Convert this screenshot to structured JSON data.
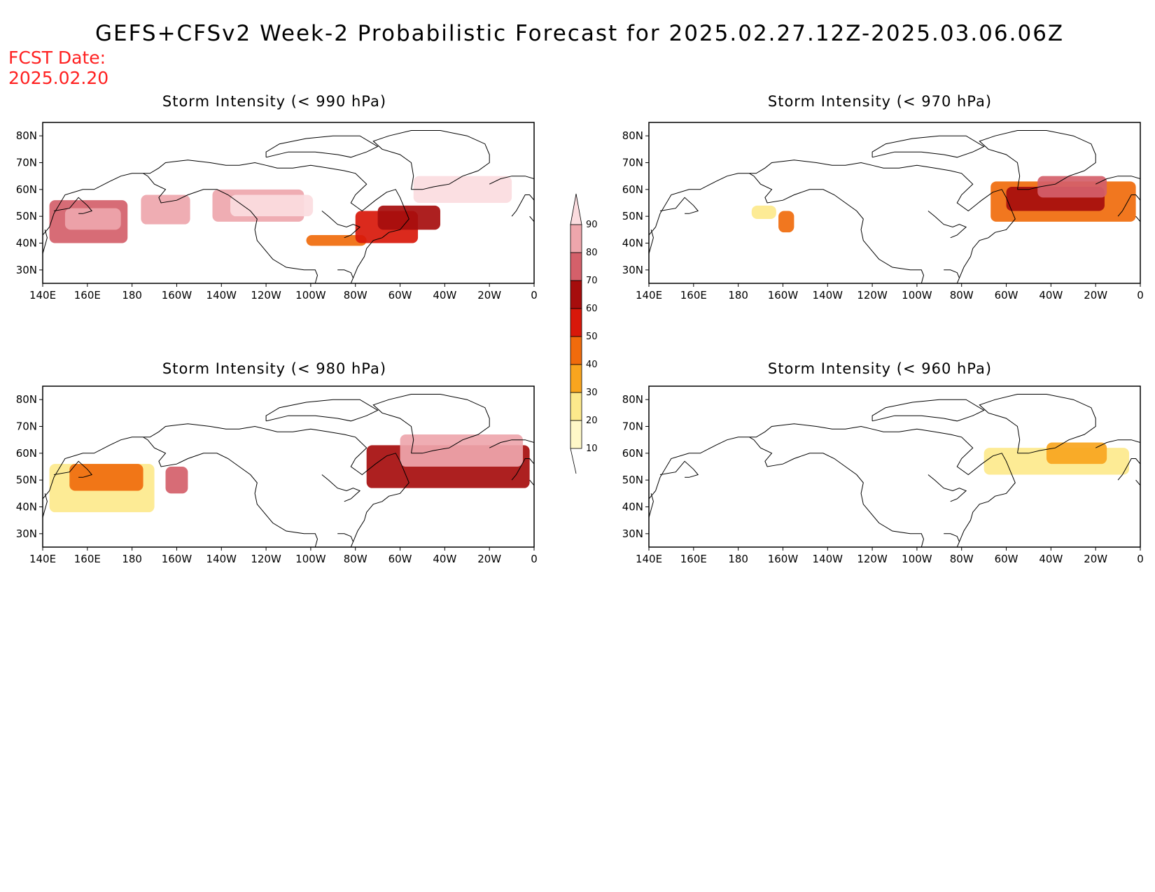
{
  "title": "GEFS+CFSv2 Week-2 Probabilistic Forecast for 2025.02.27.12Z-2025.03.06.06Z",
  "fcst_label": "FCST Date:",
  "fcst_date": "2025.02.20",
  "lat_labels": [
    "80N",
    "70N",
    "60N",
    "50N",
    "40N",
    "30N"
  ],
  "lon_labels": [
    "140E",
    "160E",
    "180",
    "160W",
    "140W",
    "120W",
    "100W",
    "80W",
    "60W",
    "40W",
    "20W",
    "0"
  ],
  "panels": [
    {
      "id": "p990",
      "title": "Storm Intensity (< 990 hPa)"
    },
    {
      "id": "p970",
      "title": "Storm Intensity (< 970 hPa)"
    },
    {
      "id": "p980",
      "title": "Storm Intensity (< 980 hPa)"
    },
    {
      "id": "p960",
      "title": "Storm Intensity (< 960 hPa)"
    }
  ],
  "colorbar": {
    "levels": [
      "10",
      "20",
      "30",
      "40",
      "50",
      "60",
      "70",
      "80",
      "90"
    ],
    "colors": [
      "#fff8c8",
      "#fde98c",
      "#f9a51e",
      "#f06b0c",
      "#d8180a",
      "#a60d0d",
      "#d4606a",
      "#eea6ac",
      "#fbdcdf"
    ]
  },
  "chart_data": {
    "type": "heatmap",
    "domain": {
      "lon": [
        "140E",
        "0"
      ],
      "lat": [
        "25N",
        "85N"
      ]
    },
    "probability_bins_pct": [
      10,
      20,
      30,
      40,
      50,
      60,
      70,
      80,
      90
    ],
    "regions": {
      "p990": [
        {
          "lon": [
            143,
            178
          ],
          "lat": [
            40,
            56
          ],
          "level": 6
        },
        {
          "lon": [
            150,
            175
          ],
          "lat": [
            45,
            53
          ],
          "level": 7
        },
        {
          "lon": [
            184,
            206
          ],
          "lat": [
            47,
            58
          ],
          "level": 7
        },
        {
          "lon": [
            216,
            257
          ],
          "lat": [
            48,
            60
          ],
          "level": 7
        },
        {
          "lon": [
            224,
            261
          ],
          "lat": [
            50,
            58
          ],
          "level": 8
        },
        {
          "lon": [
            258,
            285
          ],
          "lat": [
            39,
            43
          ],
          "level": 3
        },
        {
          "lon": [
            280,
            308
          ],
          "lat": [
            40,
            52
          ],
          "level": 4
        },
        {
          "lon": [
            290,
            318
          ],
          "lat": [
            45,
            54
          ],
          "level": 5
        },
        {
          "lon": [
            306,
            350
          ],
          "lat": [
            55,
            65
          ],
          "level": 8
        }
      ],
      "p970": [
        {
          "lon": [
            186,
            197
          ],
          "lat": [
            49,
            54
          ],
          "level": 1
        },
        {
          "lon": [
            198,
            205
          ],
          "lat": [
            44,
            52
          ],
          "level": 3
        },
        {
          "lon": [
            293,
            358
          ],
          "lat": [
            48,
            63
          ],
          "level": 3
        },
        {
          "lon": [
            300,
            344
          ],
          "lat": [
            52,
            61
          ],
          "level": 5
        },
        {
          "lon": [
            314,
            345
          ],
          "lat": [
            57,
            65
          ],
          "level": 6
        }
      ],
      "p980": [
        {
          "lon": [
            143,
            190
          ],
          "lat": [
            38,
            56
          ],
          "level": 1
        },
        {
          "lon": [
            152,
            185
          ],
          "lat": [
            46,
            56
          ],
          "level": 3
        },
        {
          "lon": [
            195,
            205
          ],
          "lat": [
            45,
            55
          ],
          "level": 6
        },
        {
          "lon": [
            285,
            358
          ],
          "lat": [
            47,
            63
          ],
          "level": 5
        },
        {
          "lon": [
            300,
            355
          ],
          "lat": [
            55,
            67
          ],
          "level": 7
        }
      ],
      "p960": [
        {
          "lon": [
            290,
            355
          ],
          "lat": [
            52,
            62
          ],
          "level": 1
        },
        {
          "lon": [
            318,
            345
          ],
          "lat": [
            56,
            64
          ],
          "level": 2
        }
      ]
    }
  }
}
